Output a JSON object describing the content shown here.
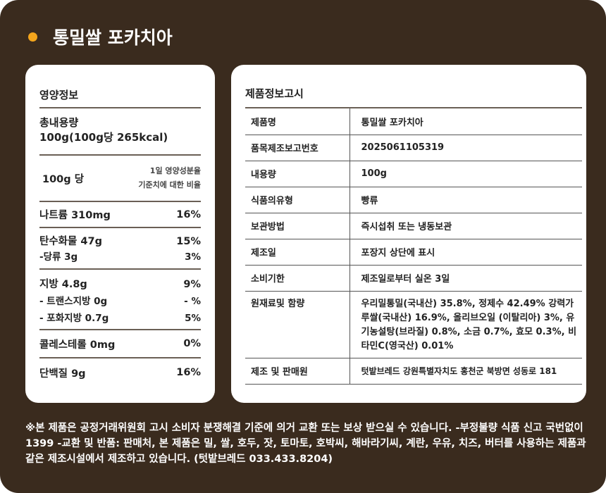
{
  "title": "통밀쌀 포카치아",
  "accent": "#f4a51c",
  "nutrition": {
    "heading": "영양정보",
    "total_label": "총내용량",
    "total_value": "100g(100g당 265kcal)",
    "per": "100g 당",
    "ratio_line1": "1일 영양성분율",
    "ratio_line2": "기준치에 대한 비율",
    "items": [
      {
        "name": "나트륨 310mg",
        "pct": "16%"
      },
      {
        "name": "탄수화물 47g",
        "pct": "15%"
      },
      {
        "name": "-당류  3g",
        "pct": "3%"
      },
      {
        "name": "지방  4.8g",
        "pct": "9%"
      },
      {
        "name": "- 트랜스지방 0g",
        "pct": "- %"
      },
      {
        "name": "- 포화지방 0.7g",
        "pct": "5%"
      },
      {
        "name": "콜레스테롤  0mg",
        "pct": "0%"
      },
      {
        "name": "단백질 9g",
        "pct": "16%"
      }
    ]
  },
  "product": {
    "heading": "제품정보고시",
    "rows": [
      {
        "k": "제품명",
        "v": "통밀쌀 포카치아"
      },
      {
        "k": "품목제조보고번호",
        "v": "2025061105319"
      },
      {
        "k": "내용량",
        "v": "100g"
      },
      {
        "k": "식품의유형",
        "v": "빵류"
      },
      {
        "k": "보관방법",
        "v": "즉시섭취 또는 냉동보관"
      },
      {
        "k": "제조일",
        "v": "포장지 상단에 표시"
      },
      {
        "k": "소비기한",
        "v": "제조일로부터 실온 3일"
      },
      {
        "k": "원재료및 함량",
        "v": "우리밀통밀(국내산) 35.8%, 정제수 42.49% 강력가루쌀(국내산) 16.9%, 올리브오일 (이탈리아) 3%, 유기농설탕(브라질) 0.8%, 소금 0.7%, 효모 0.3%, 비타민C(영국산) 0.01%"
      },
      {
        "k": "제조 및 판매원",
        "v": "텃밭브레드  강원특별자치도 홍천군 북방면 성동로 181"
      }
    ]
  },
  "notice": "※본 제품은 공정거래위원회 고시 소비자 분쟁해결 기준에 의거 교환 또는 보상 받으실 수 있습니다. -부정불량 식품 신고 국번없이 1399 -교환 및 반품: 판매처, 본 제품은 밀, 쌀, 호두, 잣, 토마토, 호박씨, 해바라기씨, 계란, 우유, 치즈, 버터를 사용하는 제품과 같은 제조시설에서 제조하고 있습니다. (텃밭브레드 033.433.8204)"
}
